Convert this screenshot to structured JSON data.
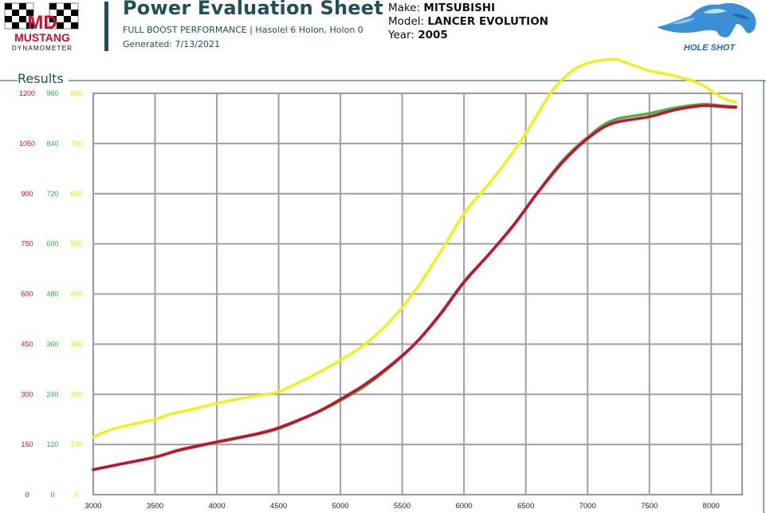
{
  "header": {
    "title": "Power Evaluation Sheet",
    "subtitle": "FULL BOOST PERFORMANCE | Hasolel 6 Holon, Holon 0",
    "generated": "Generated: 7/13/2021",
    "logo_left_text": "MUSTANG",
    "logo_left_subtext": "DYNAMOMETER",
    "logo_right_text": "HOLE SHOT"
  },
  "vehicle": {
    "make_label": "Make:",
    "make": "MITSUBISHI",
    "model_label": "Model:",
    "model": "LANCER EVOLUTION",
    "year_label": "Year:",
    "year": "2005"
  },
  "section": {
    "title": "Results"
  },
  "colors": {
    "axis1": "#c8102e",
    "axis2": "#2eb34a",
    "axis3": "#e8e800",
    "series_red": "#c8102e",
    "series_green": "#4caf50",
    "series_yellow": "#f0f020",
    "header_teal": "#1f4f58"
  },
  "chart_data": {
    "type": "line",
    "xlim": [
      3000,
      8250
    ],
    "x_ticks": [
      3000,
      3500,
      4000,
      4500,
      5000,
      5500,
      6000,
      6500,
      7000,
      7500,
      8000
    ],
    "y_axes": [
      {
        "color": "red",
        "ticks": [
          0,
          150,
          300,
          450,
          600,
          750,
          900,
          1050,
          1200
        ],
        "ylim": [
          0,
          1200
        ]
      },
      {
        "color": "green",
        "ticks": [
          0,
          120,
          240,
          360,
          480,
          600,
          720,
          840,
          960
        ],
        "ylim": [
          0,
          960
        ]
      },
      {
        "color": "yellow",
        "ticks": [
          0,
          100,
          200,
          300,
          400,
          500,
          600,
          700,
          800
        ],
        "ylim": [
          0,
          800
        ]
      }
    ],
    "grid": true,
    "series": [
      {
        "color": "yellow",
        "axis": 2,
        "x": [
          3000,
          3150,
          3350,
          3500,
          3650,
          3800,
          4000,
          4200,
          4400,
          4500,
          4650,
          4800,
          5000,
          5200,
          5400,
          5600,
          5800,
          6000,
          6150,
          6300,
          6500,
          6700,
          6850,
          7000,
          7200,
          7300,
          7500,
          7700,
          7900,
          8000,
          8100,
          8200
        ],
        "y": [
          115,
          130,
          142,
          150,
          162,
          170,
          182,
          192,
          200,
          205,
          222,
          240,
          268,
          300,
          345,
          405,
          480,
          560,
          605,
          650,
          720,
          800,
          840,
          860,
          868,
          862,
          845,
          835,
          820,
          805,
          790,
          782
        ]
      },
      {
        "color": "green",
        "axis": 1,
        "x": [
          3000,
          3200,
          3500,
          3700,
          4000,
          4300,
          4500,
          4800,
          5000,
          5200,
          5400,
          5600,
          5800,
          6000,
          6200,
          6400,
          6600,
          6800,
          7000,
          7200,
          7500,
          7700,
          7900,
          8000,
          8100,
          8200
        ],
        "y": [
          60,
          72,
          90,
          106,
          125,
          143,
          158,
          195,
          225,
          260,
          305,
          360,
          430,
          510,
          575,
          645,
          725,
          800,
          855,
          895,
          912,
          925,
          933,
          933,
          930,
          928
        ]
      },
      {
        "color": "red",
        "axis": 0,
        "x": [
          3000,
          3200,
          3500,
          3700,
          4000,
          4300,
          4500,
          4800,
          5000,
          5200,
          5400,
          5600,
          5800,
          6000,
          6200,
          6400,
          6600,
          6800,
          7000,
          7200,
          7500,
          7700,
          7900,
          8000,
          8100,
          8200
        ],
        "y": [
          75,
          90,
          112,
          134,
          158,
          180,
          200,
          245,
          285,
          330,
          385,
          450,
          535,
          635,
          718,
          805,
          905,
          995,
          1065,
          1110,
          1130,
          1150,
          1162,
          1163,
          1160,
          1158
        ]
      }
    ]
  }
}
